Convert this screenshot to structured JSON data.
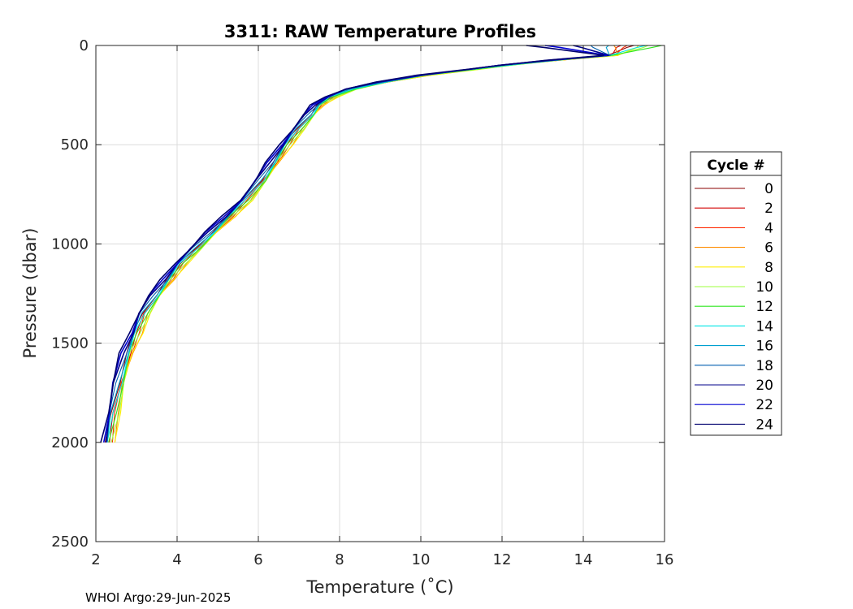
{
  "chart_data": {
    "type": "line",
    "title": "3311: RAW Temperature Profiles",
    "xlabel": "Temperature (˚C)",
    "ylabel": "Pressure (dbar)",
    "xlim": [
      2,
      16
    ],
    "ylim": [
      0,
      2500
    ],
    "y_reversed": true,
    "grid": true,
    "x_ticks": [
      "2",
      "4",
      "6",
      "8",
      "10",
      "12",
      "14",
      "16"
    ],
    "y_ticks": [
      "0",
      "500",
      "1000",
      "1500",
      "2000",
      "2500"
    ],
    "legend": {
      "title": "Cycle #",
      "placement": "right",
      "entries": [
        "0",
        "2",
        "4",
        "6",
        "8",
        "10",
        "12",
        "14",
        "16",
        "18",
        "20",
        "22",
        "24"
      ]
    },
    "base_profile": {
      "temperature": [
        15.4,
        15.3,
        14.6,
        13.2,
        12.0,
        11.2,
        10.0,
        9.0,
        8.2,
        7.7,
        7.4,
        7.2,
        6.9,
        6.6,
        6.3,
        6.0,
        5.6,
        5.2,
        4.8,
        4.4,
        4.0,
        3.7,
        3.4,
        3.1,
        2.9,
        2.7,
        2.5,
        2.35,
        2.22
      ],
      "pressure": [
        0,
        10,
        50,
        75,
        100,
        120,
        150,
        185,
        220,
        260,
        300,
        350,
        420,
        500,
        590,
        680,
        780,
        860,
        940,
        1020,
        1100,
        1180,
        1260,
        1350,
        1450,
        1550,
        1700,
        1850,
        2000
      ]
    },
    "series": [
      {
        "name": "0",
        "color": "#8b0000",
        "temp_offset": 0.05,
        "surface_temp": 15.2
      },
      {
        "name": "2",
        "color": "#d40000",
        "temp_offset": 0.12,
        "surface_temp": 14.9
      },
      {
        "name": "4",
        "color": "#ff2a00",
        "temp_offset": 0.15,
        "surface_temp": 15.1
      },
      {
        "name": "6",
        "color": "#ff8c00",
        "temp_offset": 0.2,
        "surface_temp": 14.8
      },
      {
        "name": "8",
        "color": "#ffee00",
        "temp_offset": 0.22,
        "surface_temp": 15.4
      },
      {
        "name": "10",
        "color": "#9cff3c",
        "temp_offset": 0.18,
        "surface_temp": 15.6
      },
      {
        "name": "12",
        "color": "#2ee61e",
        "temp_offset": 0.14,
        "surface_temp": 15.9
      },
      {
        "name": "14",
        "color": "#00e6e6",
        "temp_offset": 0.1,
        "surface_temp": 15.5
      },
      {
        "name": "16",
        "color": "#00a0d0",
        "temp_offset": 0.06,
        "surface_temp": 14.6
      },
      {
        "name": "18",
        "color": "#005faf",
        "temp_offset": 0.02,
        "surface_temp": 14.2
      },
      {
        "name": "20",
        "color": "#00008b",
        "temp_offset": -0.02,
        "surface_temp": 13.8
      },
      {
        "name": "22",
        "color": "#0000d4",
        "temp_offset": -0.05,
        "surface_temp": 13.1
      },
      {
        "name": "24",
        "color": "#00006e",
        "temp_offset": -0.08,
        "surface_temp": 12.6
      }
    ]
  },
  "footer": {
    "text": "WHOI Argo:29-Jun-2025"
  }
}
